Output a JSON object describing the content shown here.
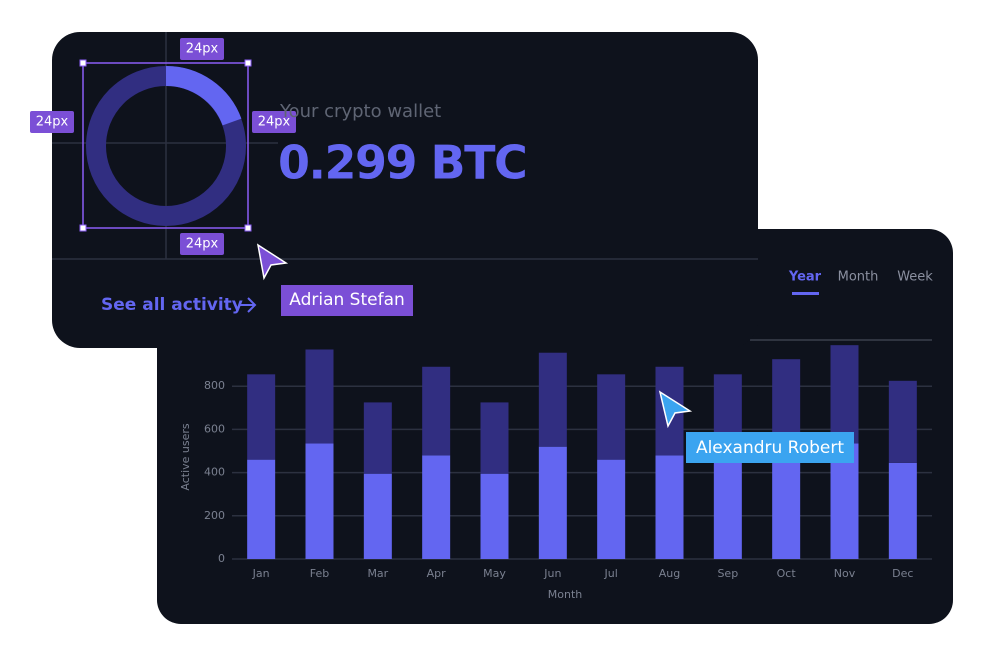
{
  "wallet": {
    "label": "Your crypto wallet",
    "amount": "0.299 BTC",
    "link": "See all activity",
    "spacing_labels": [
      "24px",
      "24px",
      "24px",
      "24px"
    ]
  },
  "cursors": [
    "Adrian Stefan",
    "Alexandru Robert"
  ],
  "tabs": [
    "Year",
    "Month",
    "Week"
  ],
  "chart_data": {
    "type": "bar",
    "stacked": true,
    "xlabel": "Month",
    "ylabel": "Active users",
    "categories": [
      "Jan",
      "Feb",
      "Mar",
      "Apr",
      "May",
      "Jun",
      "Jul",
      "Aug",
      "Sep",
      "Oct",
      "Nov",
      "Dec"
    ],
    "series": [
      {
        "color": "#6366f1",
        "values": [
          460,
          535,
          395,
          480,
          395,
          520,
          460,
          480,
          460,
          500,
          535,
          445
        ]
      },
      {
        "color": "#312e81",
        "values": [
          395,
          435,
          330,
          410,
          330,
          435,
          395,
          410,
          395,
          425,
          455,
          380
        ]
      }
    ],
    "ylim": [
      0,
      1000
    ],
    "yticks": [
      0,
      200,
      400,
      600,
      800
    ],
    "grid": true
  }
}
